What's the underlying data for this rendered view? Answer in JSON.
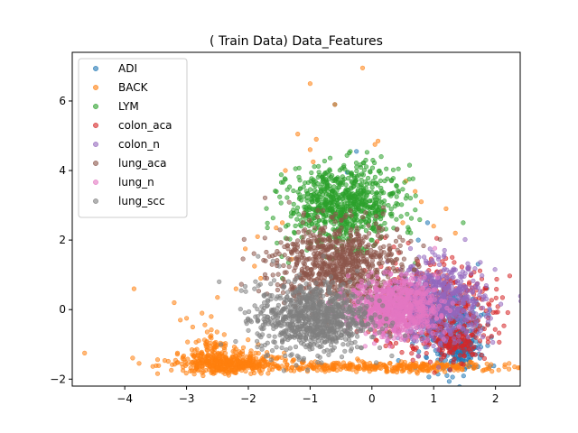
{
  "chart_data": {
    "type": "scatter",
    "title": "(  Train Data) Data_Features",
    "xlabel": "",
    "ylabel": "",
    "xlim": [
      -4.85,
      2.4
    ],
    "ylim": [
      -2.2,
      7.4
    ],
    "xticks": [
      -4,
      -3,
      -2,
      -1,
      0,
      1,
      2
    ],
    "yticks": [
      -2,
      0,
      2,
      4,
      6
    ],
    "grid": false,
    "legend_position": "top-left",
    "series": [
      {
        "name": "ADI",
        "color": "#1f77b4",
        "clusters": [
          {
            "cx": 1.25,
            "cy": -0.5,
            "sx": 0.28,
            "sy": 0.55,
            "n": 260
          },
          {
            "cx": 1.45,
            "cy": -1.2,
            "sx": 0.15,
            "sy": 0.3,
            "n": 120
          }
        ],
        "points": [
          [
            -0.25,
            4.55
          ],
          [
            -0.4,
            3.95
          ],
          [
            -0.6,
            5.9
          ],
          [
            0.75,
            2.0
          ],
          [
            0.9,
            2.5
          ]
        ]
      },
      {
        "name": "BACK",
        "color": "#ff7f0e",
        "clusters": [
          {
            "cx": -2.3,
            "cy": -1.55,
            "sx": 0.45,
            "sy": 0.15,
            "n": 420
          },
          {
            "cx": 0.2,
            "cy": -1.65,
            "sx": 1.05,
            "sy": 0.07,
            "n": 320
          },
          {
            "cx": -2.6,
            "cy": -1.0,
            "sx": 0.2,
            "sy": 0.22,
            "n": 70
          }
        ],
        "points": [
          [
            -4.65,
            -1.25
          ],
          [
            -3.85,
            0.6
          ],
          [
            -3.2,
            0.2
          ],
          [
            -1.0,
            6.5
          ],
          [
            -0.15,
            6.95
          ],
          [
            -0.6,
            5.9
          ],
          [
            -1.2,
            5.05
          ],
          [
            -1.0,
            4.6
          ],
          [
            -0.95,
            4.25
          ],
          [
            -0.9,
            4.9
          ],
          [
            0.05,
            4.75
          ],
          [
            0.1,
            4.85
          ],
          [
            -1.4,
            4.0
          ],
          [
            -1.45,
            2.5
          ],
          [
            -1.55,
            2.35
          ],
          [
            -2.05,
            1.75
          ],
          [
            -1.9,
            1.25
          ],
          [
            -1.8,
            0.9
          ],
          [
            -2.2,
            0.6
          ],
          [
            -2.5,
            0.35
          ],
          [
            -2.75,
            -0.1
          ],
          [
            -3.0,
            -0.25
          ],
          [
            -3.1,
            -0.3
          ],
          [
            -2.9,
            -0.5
          ],
          [
            -2.6,
            -0.2
          ],
          [
            -1.85,
            2.1
          ],
          [
            -1.3,
            1.45
          ],
          [
            0.55,
            3.7
          ],
          [
            0.7,
            3.4
          ],
          [
            0.8,
            3.1
          ],
          [
            0.5,
            2.5
          ],
          [
            1.2,
            2.9
          ],
          [
            1.0,
            2.4
          ],
          [
            1.35,
            2.2
          ]
        ]
      },
      {
        "name": "LYM",
        "color": "#2ca02c",
        "clusters": [
          {
            "cx": -0.45,
            "cy": 3.0,
            "sx": 0.45,
            "sy": 0.55,
            "n": 750
          }
        ],
        "points": [
          [
            -0.35,
            4.55
          ],
          [
            0.15,
            4.4
          ],
          [
            -1.1,
            3.25
          ],
          [
            -1.25,
            2.2
          ],
          [
            -1.0,
            1.9
          ],
          [
            0.4,
            3.55
          ],
          [
            0.55,
            3.2
          ],
          [
            0.6,
            2.3
          ],
          [
            -1.45,
            0.9
          ],
          [
            -1.35,
            1.35
          ]
        ]
      },
      {
        "name": "colon_aca",
        "color": "#d62728",
        "clusters": [
          {
            "cx": 0.9,
            "cy": 0.1,
            "sx": 0.55,
            "sy": 0.65,
            "n": 420
          },
          {
            "cx": 1.35,
            "cy": -0.9,
            "sx": 0.25,
            "sy": 0.25,
            "n": 130
          }
        ],
        "points": [
          [
            1.05,
            2.05
          ],
          [
            0.7,
            -1.15
          ],
          [
            1.75,
            -0.9
          ]
        ]
      },
      {
        "name": "colon_n",
        "color": "#9467bd",
        "clusters": [
          {
            "cx": 1.05,
            "cy": 0.2,
            "sx": 0.38,
            "sy": 0.55,
            "n": 700
          }
        ],
        "points": []
      },
      {
        "name": "lung_aca",
        "color": "#8c564b",
        "clusters": [
          {
            "cx": -0.55,
            "cy": 1.3,
            "sx": 0.5,
            "sy": 0.6,
            "n": 800
          }
        ],
        "points": [
          [
            -1.5,
            1.6
          ],
          [
            0.2,
            -0.4
          ],
          [
            -1.7,
            0.9
          ]
        ]
      },
      {
        "name": "lung_n",
        "color": "#e377c2",
        "clusters": [
          {
            "cx": 0.35,
            "cy": 0.05,
            "sx": 0.35,
            "sy": 0.4,
            "n": 850
          }
        ],
        "points": []
      },
      {
        "name": "lung_scc",
        "color": "#7f7f7f",
        "clusters": [
          {
            "cx": -0.95,
            "cy": -0.25,
            "sx": 0.45,
            "sy": 0.5,
            "n": 900
          }
        ],
        "points": [
          [
            -1.9,
            0.6
          ],
          [
            -1.85,
            -0.3
          ],
          [
            -1.95,
            -0.35
          ],
          [
            -1.6,
            1.4
          ],
          [
            -1.5,
            1.25
          ],
          [
            -2.0,
            -0.6
          ],
          [
            -1.7,
            0.1
          ]
        ]
      }
    ]
  }
}
